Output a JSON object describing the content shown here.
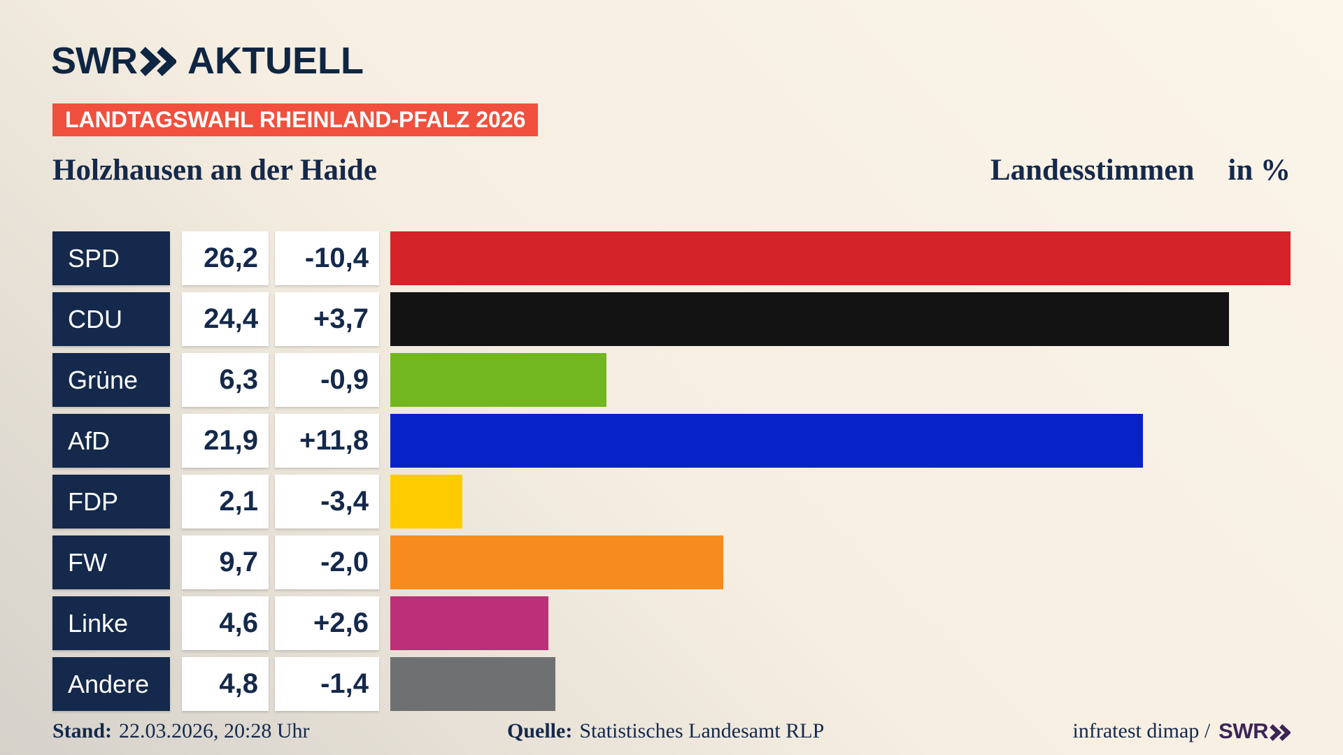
{
  "brand": {
    "logo_swr": "SWR",
    "logo_suffix": "AKTUELL"
  },
  "badge": {
    "label": "LANDTAGSWAHL RHEINLAND-PFALZ 2026",
    "bg_color": "#f0503d",
    "text_color": "#ffffff"
  },
  "header": {
    "municipality": "Holzhausen an der Haide",
    "measure": "Landesstimmen",
    "unit": "in %"
  },
  "chart_data": {
    "type": "bar",
    "orientation": "horizontal",
    "title": "Holzhausen an der Haide",
    "measure_label": "Landesstimmen",
    "unit_label": "in %",
    "categories": [
      "SPD",
      "CDU",
      "Grüne",
      "AfD",
      "FDP",
      "FW",
      "Linke",
      "Andere"
    ],
    "values": [
      26.2,
      24.4,
      6.3,
      21.9,
      2.1,
      9.7,
      4.6,
      4.8
    ],
    "value_labels": [
      "26,2",
      "24,4",
      "6,3",
      "21,9",
      "2,1",
      "9,7",
      "4,6",
      "4,8"
    ],
    "changes": [
      -10.4,
      3.7,
      -0.9,
      11.8,
      -3.4,
      -2.0,
      2.6,
      -1.4
    ],
    "change_labels": [
      "-10,4",
      "+3,7",
      "-0,9",
      "+11,8",
      "-3,4",
      "-2,0",
      "+2,6",
      "-1,4"
    ],
    "bar_colors": [
      "#d42329",
      "#131313",
      "#72b620",
      "#0723c8",
      "#fdcb00",
      "#f78b1d",
      "#bd2f76",
      "#6e7071"
    ],
    "xlim": [
      0,
      26.2
    ],
    "grid": false,
    "legend": false
  },
  "footer": {
    "stand_label": "Stand:",
    "stand_value": "22.03.2026, 20:28 Uhr",
    "quelle_label": "Quelle:",
    "quelle_value": "Statistisches Landesamt RLP",
    "credit_text": "infratest dimap /",
    "credit_logo": "SWR"
  },
  "theme": {
    "navy": "#14294b",
    "logo_navy": "#0f2642",
    "purple": "#3c2457",
    "bg_top": "#fbf4e9",
    "bg_mid": "#f6eee1",
    "bg_bottom": "#d5d1ca",
    "box_white": "#ffffff"
  }
}
